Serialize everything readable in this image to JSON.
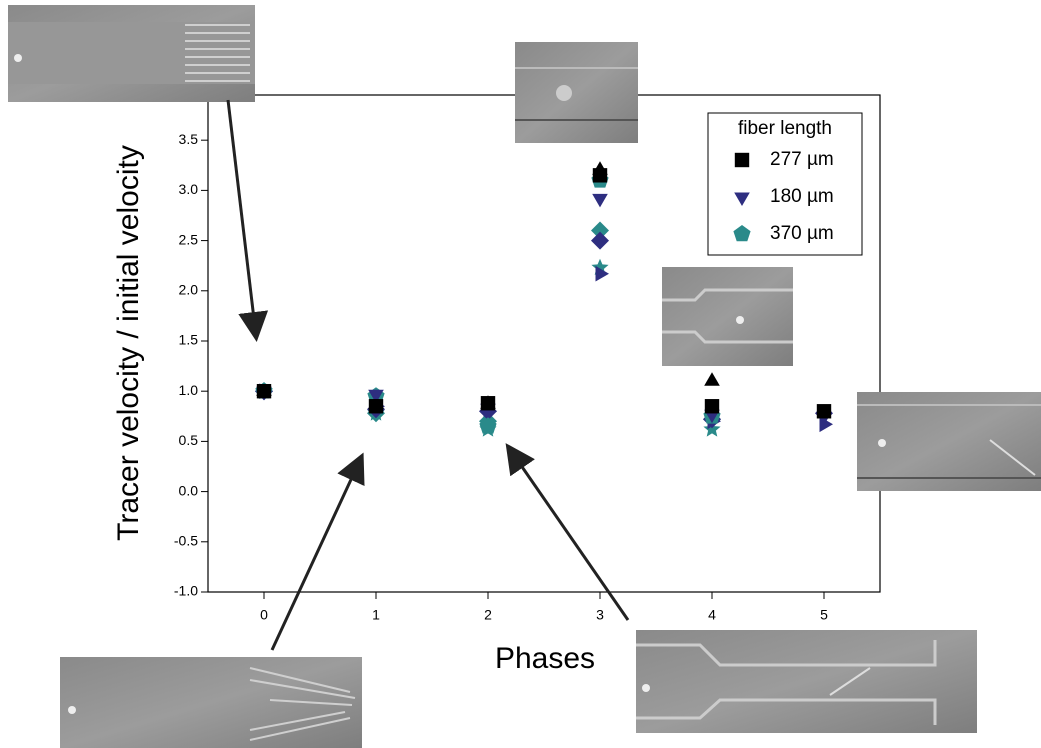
{
  "chart_data": {
    "type": "scatter",
    "x_label": "Phases",
    "y_label": "Tracer velocity / initial velocity",
    "legend_title": "fiber length",
    "legend_corner": "upper right",
    "x": [
      0,
      1,
      2,
      3,
      4,
      5
    ],
    "xlim": [
      -0.5,
      5.5
    ],
    "xticks": [
      0,
      1,
      2,
      3,
      4,
      5
    ],
    "ylim": [
      -1.0,
      3.95
    ],
    "yticks": [
      {
        "value": -1,
        "label": "-1.0"
      },
      -0.5,
      {
        "value": 0,
        "label": "0.0"
      },
      0.5,
      {
        "value": 1,
        "label": "1.0"
      },
      1.5,
      {
        "value": 2,
        "label": "2.0"
      },
      2.5,
      {
        "value": 3,
        "label": "3.0"
      },
      3.5
    ],
    "series": [
      {
        "name": "277 µm",
        "color": "#000000",
        "marker": "square",
        "values": [
          1.0,
          0.85,
          0.88,
          3.15,
          0.85,
          0.8
        ]
      },
      {
        "name": "180 µm",
        "color": "#2e2e80",
        "marker": "triangle-down",
        "values": [
          1.0,
          0.97,
          0.83,
          2.92,
          0.77,
          0.75
        ]
      },
      {
        "name": "370 µm",
        "color": "#2a8a8a",
        "marker": "pentagon",
        "values": [
          1.0,
          0.95,
          0.65,
          3.1,
          0.75,
          null
        ]
      },
      {
        "color": "#000000",
        "marker": "triangle-up",
        "values": [
          1.0,
          0.87,
          0.87,
          3.2,
          1.1,
          null
        ]
      },
      {
        "color": "#2e2e80",
        "marker": "diamond",
        "values": [
          1.0,
          0.82,
          0.8,
          2.5,
          0.72,
          0.78
        ]
      },
      {
        "color": "#2a8a8a",
        "marker": "diamond",
        "values": [
          1.0,
          0.78,
          0.7,
          2.6,
          0.72,
          null
        ]
      },
      {
        "color": "#2e2e80",
        "marker": "triangle-right",
        "values": [
          1.0,
          0.85,
          0.8,
          2.17,
          0.7,
          0.67
        ]
      },
      {
        "color": "#2a8a8a",
        "marker": "star",
        "values": [
          1.0,
          0.78,
          0.62,
          2.23,
          0.62,
          null
        ]
      }
    ]
  }
}
